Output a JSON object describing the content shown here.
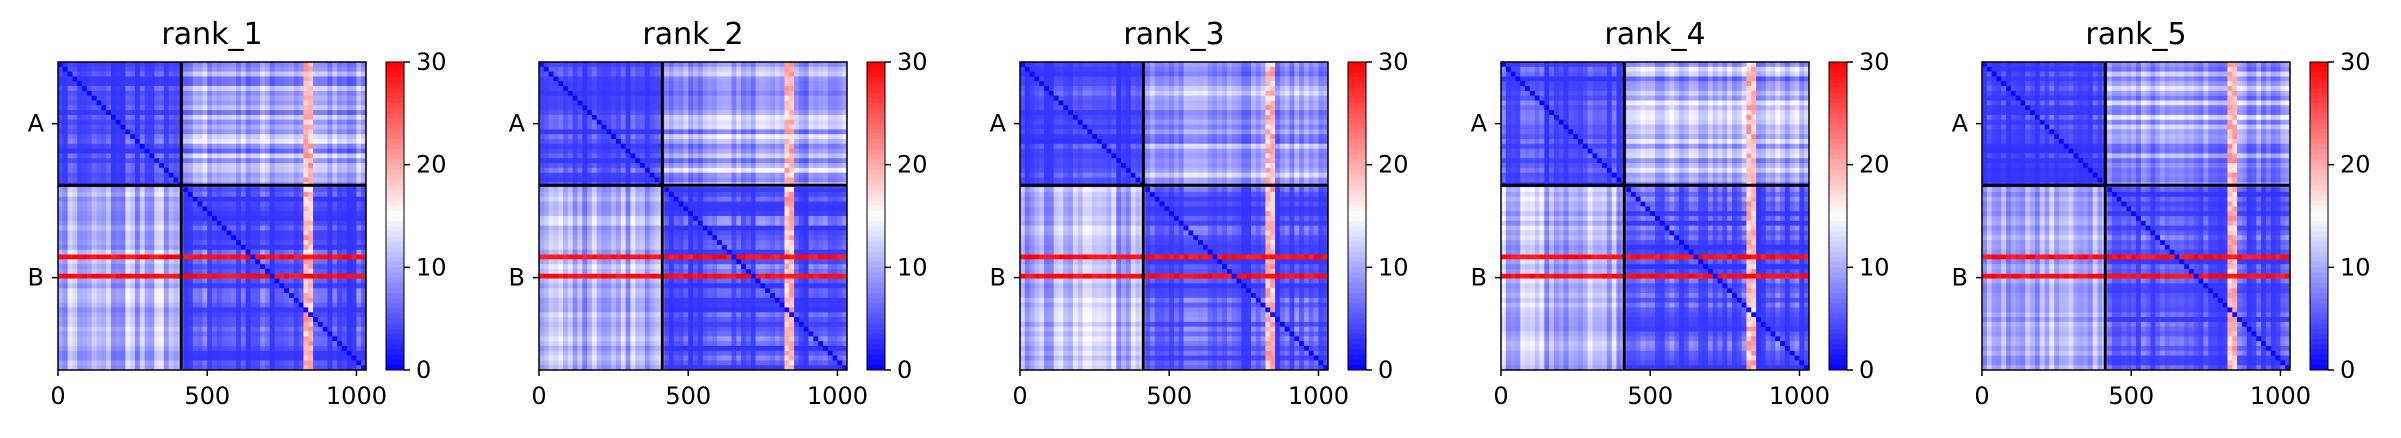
{
  "chart_data": [
    {
      "type": "heatmap",
      "title": "rank_1",
      "chains": [
        "A",
        "B"
      ],
      "chain_boundary": 413,
      "residues": 1032,
      "xticks": [
        0,
        500,
        1000
      ],
      "colorbar": {
        "min": 0,
        "max": 30,
        "ticks": [
          0,
          10,
          20,
          30
        ],
        "colormap": "bwr"
      },
      "highlight_bands": [
        650,
        720,
        840
      ],
      "seed": 11
    },
    {
      "type": "heatmap",
      "title": "rank_2",
      "chains": [
        "A",
        "B"
      ],
      "chain_boundary": 413,
      "residues": 1032,
      "xticks": [
        0,
        500,
        1000
      ],
      "colorbar": {
        "min": 0,
        "max": 30,
        "ticks": [
          0,
          10,
          20,
          30
        ],
        "colormap": "bwr"
      },
      "highlight_bands": [
        650,
        720,
        840
      ],
      "seed": 23
    },
    {
      "type": "heatmap",
      "title": "rank_3",
      "chains": [
        "A",
        "B"
      ],
      "chain_boundary": 413,
      "residues": 1032,
      "xticks": [
        0,
        500,
        1000
      ],
      "colorbar": {
        "min": 0,
        "max": 30,
        "ticks": [
          0,
          10,
          20,
          30
        ],
        "colormap": "bwr"
      },
      "highlight_bands": [
        650,
        720,
        840
      ],
      "seed": 37
    },
    {
      "type": "heatmap",
      "title": "rank_4",
      "chains": [
        "A",
        "B"
      ],
      "chain_boundary": 413,
      "residues": 1032,
      "xticks": [
        0,
        500,
        1000
      ],
      "colorbar": {
        "min": 0,
        "max": 30,
        "ticks": [
          0,
          10,
          20,
          30
        ],
        "colormap": "bwr"
      },
      "highlight_bands": [
        650,
        720,
        840
      ],
      "seed": 41
    },
    {
      "type": "heatmap",
      "title": "rank_5",
      "chains": [
        "A",
        "B"
      ],
      "chain_boundary": 413,
      "residues": 1032,
      "xticks": [
        0,
        500,
        1000
      ],
      "colorbar": {
        "min": 0,
        "max": 30,
        "ticks": [
          0,
          10,
          20,
          30
        ],
        "colormap": "bwr"
      },
      "highlight_bands": [
        650,
        720,
        840
      ],
      "seed": 53
    }
  ]
}
